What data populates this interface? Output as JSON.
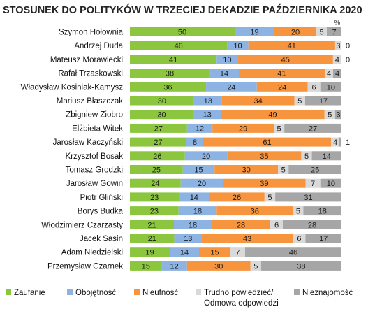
{
  "chart_data": {
    "type": "bar",
    "orientation": "horizontal",
    "stacked": true,
    "title": "STOSUNEK DO POLITYKÓW W TRZECIEJ DEKADZIE PAŹDZIERNIKA 2020",
    "unit_label": "%",
    "categories": [
      "Szymon Hołownia",
      "Andrzej Duda",
      "Mateusz Morawiecki",
      "Rafał Trzaskowski",
      "Władysław Kosiniak-Kamysz",
      "Mariusz Błaszczak",
      "Zbigniew Ziobro",
      "Elżbieta Witek",
      "Jarosław Kaczyński",
      "Krzysztof Bosak",
      "Tomasz Grodzki",
      "Jarosław Gowin",
      "Piotr Gliński",
      "Borys Budka",
      "Włodzimierz Czarzasty",
      "Jacek Sasin",
      "Adam Niedzielski",
      "Przemysław Czarnek"
    ],
    "series": [
      {
        "name": "Zaufanie",
        "color": "#8cc63f",
        "values": [
          50,
          46,
          41,
          38,
          36,
          30,
          30,
          27,
          27,
          26,
          25,
          24,
          23,
          23,
          21,
          21,
          19,
          15
        ]
      },
      {
        "name": "Obojętność",
        "color": "#8db3e2",
        "values": [
          19,
          10,
          10,
          14,
          24,
          13,
          13,
          12,
          8,
          20,
          15,
          20,
          14,
          18,
          18,
          13,
          14,
          12
        ]
      },
      {
        "name": "Nieufność",
        "color": "#f7953f",
        "values": [
          20,
          41,
          45,
          41,
          24,
          34,
          49,
          29,
          61,
          35,
          30,
          39,
          26,
          36,
          28,
          43,
          15,
          30
        ]
      },
      {
        "name": "Trudno powiedzieć/ Odmowa odpowiedzi",
        "color": "#d9d9d9",
        "values": [
          5,
          3,
          4,
          4,
          6,
          5,
          5,
          5,
          4,
          5,
          5,
          7,
          5,
          5,
          6,
          6,
          7,
          5
        ]
      },
      {
        "name": "Nieznajomość",
        "color": "#a6a6a6",
        "values": [
          7,
          0,
          0,
          4,
          10,
          17,
          3,
          27,
          1,
          14,
          25,
          10,
          31,
          18,
          28,
          17,
          46,
          38
        ]
      }
    ],
    "legend": {
      "position": "bottom",
      "labels": [
        "Zaufanie",
        "Obojętność",
        "Nieufność",
        "Trudno powiedzieć/",
        "Odmowa odpowiedzi",
        "Nieznajomość"
      ]
    },
    "xlim": [
      0,
      100
    ],
    "grid": false
  }
}
